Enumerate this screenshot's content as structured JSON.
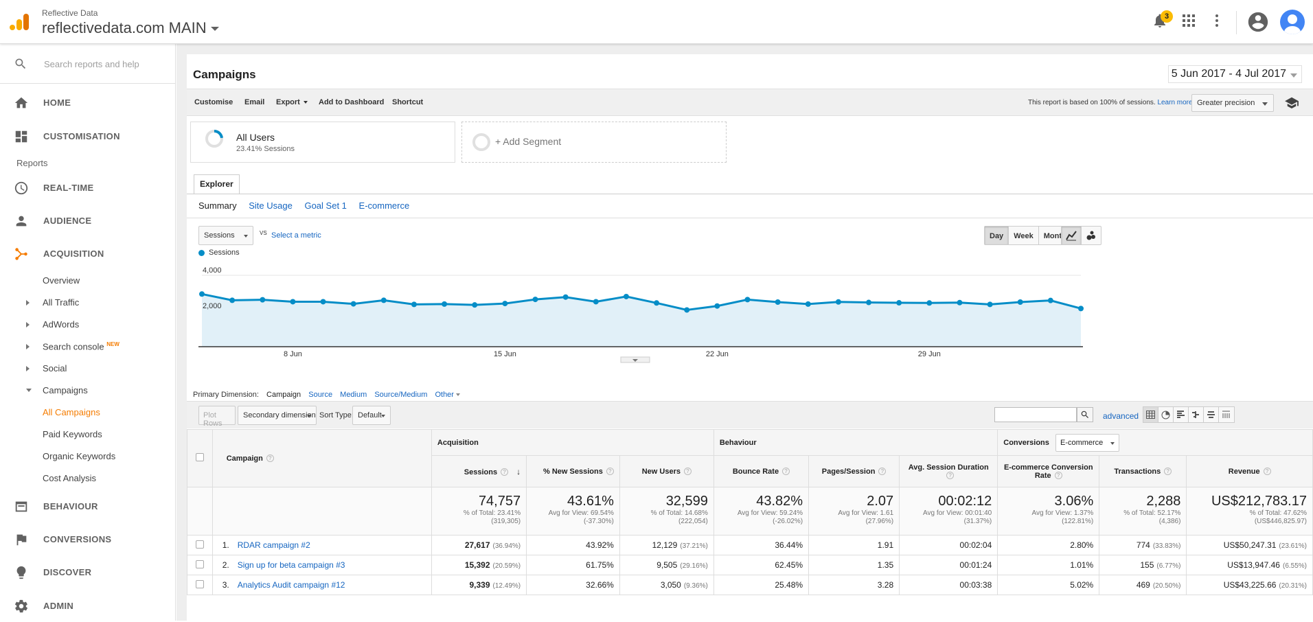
{
  "header": {
    "account_sub": "Reflective Data",
    "account_main": "reflectivedata.com MAIN",
    "notifications_count": "3",
    "icons": [
      "bell-icon",
      "apps-grid-icon",
      "more-vert-icon",
      "account-circle-icon",
      "avatar"
    ]
  },
  "sidebar": {
    "search_placeholder": "Search reports and help",
    "home": "HOME",
    "customisation": "CUSTOMISATION",
    "reports_heading": "Reports",
    "realtime": "REAL-TIME",
    "audience": "AUDIENCE",
    "acquisition": "ACQUISITION",
    "acq_items": [
      "Overview",
      "All Traffic",
      "AdWords",
      "Search console",
      "Social",
      "Campaigns"
    ],
    "new_badge": "NEW",
    "campaign_items": [
      "All Campaigns",
      "Paid Keywords",
      "Organic Keywords",
      "Cost Analysis"
    ],
    "behaviour": "BEHAVIOUR",
    "conversions": "CONVERSIONS",
    "discover": "DISCOVER",
    "admin": "ADMIN",
    "accent_color": "#f57c00"
  },
  "report": {
    "title": "Campaigns",
    "date_range": "5 Jun 2017 - 4 Jul 2017",
    "toolbar": {
      "customise": "Customise",
      "email": "Email",
      "export": "Export",
      "add_dashboard": "Add to Dashboard",
      "shortcut": "Shortcut",
      "note": "This report is based on 100% of sessions.",
      "learn_more": "Learn more",
      "precision": "Greater precision"
    },
    "segments": {
      "all_users": "All Users",
      "all_users_sub": "23.41% Sessions",
      "add_segment": "+ Add Segment"
    },
    "explorer_tab": "Explorer",
    "subtabs": [
      "Summary",
      "Site Usage",
      "Goal Set 1",
      "E-commerce"
    ],
    "metric_select": "Sessions",
    "vs": "VS",
    "select_metric": "Select a metric",
    "granularity": [
      "Day",
      "Week",
      "Month"
    ],
    "granularity_selected": "Day",
    "legend": "Sessions",
    "primary_dimension_label": "Primary Dimension:",
    "dimensions": [
      "Campaign",
      "Source",
      "Medium",
      "Source/Medium",
      "Other"
    ],
    "controls": {
      "plot_rows": "Plot Rows",
      "secondary_dimension": "Secondary dimension",
      "sort_type_label": "Sort Type:",
      "sort_type": "Default",
      "advanced": "advanced"
    }
  },
  "chart_data": {
    "type": "area",
    "series": [
      {
        "name": "Sessions",
        "values": [
          2950,
          2600,
          2630,
          2520,
          2520,
          2400,
          2600,
          2370,
          2390,
          2340,
          2420,
          2650,
          2780,
          2520,
          2810,
          2450,
          2060,
          2280,
          2640,
          2500,
          2390,
          2510,
          2480,
          2460,
          2450,
          2470,
          2370,
          2500,
          2590,
          2140
        ]
      }
    ],
    "x_tick_labels": [
      "8 Jun",
      "15 Jun",
      "22 Jun",
      "29 Jun"
    ],
    "y_tick_labels": [
      "2,000",
      "4,000"
    ],
    "ylim": [
      0,
      4000
    ],
    "color": "#058dc7",
    "fill": "#e1f0f8"
  },
  "table": {
    "campaign_header": "Campaign",
    "groups": {
      "acquisition": "Acquisition",
      "behaviour": "Behaviour",
      "conversions": "Conversions",
      "conversions_select": "E-commerce"
    },
    "columns": [
      "Sessions",
      "% New Sessions",
      "New Users",
      "Bounce Rate",
      "Pages/Session",
      "Avg. Session Duration",
      "E-commerce Conversion Rate",
      "Transactions",
      "Revenue"
    ],
    "totals": [
      {
        "big": "74,757",
        "l1": "% of Total: 23.41%",
        "l2": "(319,305)"
      },
      {
        "big": "43.61%",
        "l1": "Avg for View: 69.54%",
        "l2": "(-37.30%)"
      },
      {
        "big": "32,599",
        "l1": "% of Total: 14.68%",
        "l2": "(222,054)"
      },
      {
        "big": "43.82%",
        "l1": "Avg for View: 59.24%",
        "l2": "(-26.02%)"
      },
      {
        "big": "2.07",
        "l1": "Avg for View: 1.61",
        "l2": "(27.96%)"
      },
      {
        "big": "00:02:12",
        "l1": "Avg for View: 00:01:40",
        "l2": "(31.37%)"
      },
      {
        "big": "3.06%",
        "l1": "Avg for View: 1.37%",
        "l2": "(122.81%)"
      },
      {
        "big": "2,288",
        "l1": "% of Total: 52.17%",
        "l2": "(4,386)"
      },
      {
        "big": "US$212,783.17",
        "l1": "% of Total: 47.62%",
        "l2": "(US$446,825.97)"
      }
    ],
    "rows": [
      {
        "n": "1.",
        "name": "RDAR campaign #2",
        "sessions": "27,617",
        "sessions_pct": "(36.94%)",
        "new_sess": "43.92%",
        "new_users": "12,129",
        "new_users_pct": "(37.21%)",
        "bounce": "36.44%",
        "pages": "1.91",
        "dur": "00:02:04",
        "conv": "2.80%",
        "tx": "774",
        "tx_pct": "(33.83%)",
        "rev": "US$50,247.31",
        "rev_pct": "(23.61%)"
      },
      {
        "n": "2.",
        "name": "Sign up for beta campaign #3",
        "sessions": "15,392",
        "sessions_pct": "(20.59%)",
        "new_sess": "61.75%",
        "new_users": "9,505",
        "new_users_pct": "(29.16%)",
        "bounce": "62.45%",
        "pages": "1.35",
        "dur": "00:01:24",
        "conv": "1.01%",
        "tx": "155",
        "tx_pct": "(6.77%)",
        "rev": "US$13,947.46",
        "rev_pct": "(6.55%)"
      },
      {
        "n": "3.",
        "name": "Analytics Audit campaign #12",
        "sessions": "9,339",
        "sessions_pct": "(12.49%)",
        "new_sess": "32.66%",
        "new_users": "3,050",
        "new_users_pct": "(9.36%)",
        "bounce": "25.48%",
        "pages": "3.28",
        "dur": "00:03:38",
        "conv": "5.02%",
        "tx": "469",
        "tx_pct": "(20.50%)",
        "rev": "US$43,225.66",
        "rev_pct": "(20.31%)"
      }
    ]
  }
}
